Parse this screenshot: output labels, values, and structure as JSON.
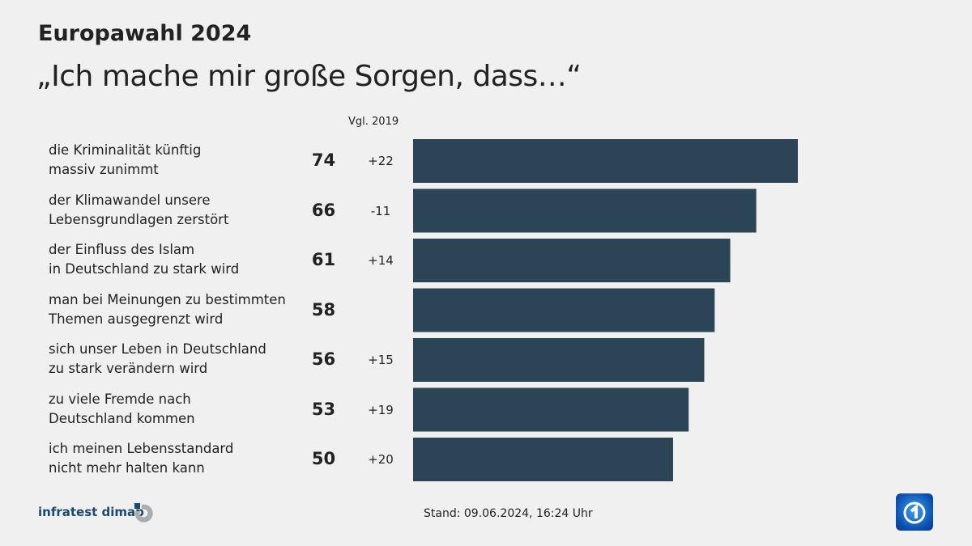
{
  "header": {
    "kicker": "Europawahl 2024",
    "title": "„Ich mache mir große Sorgen, dass…“"
  },
  "comparison_header": "Vgl. 2019",
  "chart_data": {
    "type": "bar",
    "orientation": "horizontal",
    "title": "„Ich mache mir große Sorgen, dass…“",
    "categories": [
      "die Kriminalität künftig\nmassiv zunimmt",
      "der Klimawandel unsere\nLebensgrundlagen zerstört",
      "der Einfluss des Islam\nin Deutschland zu stark wird",
      "man bei Meinungen zu bestimmten\nThemen ausgegrenzt wird",
      "sich unser Leben in Deutschland\nzu stark verändern wird",
      "zu viele Fremde nach\nDeutschland kommen",
      "ich meinen Lebensstandard\nnicht mehr halten kann"
    ],
    "values": [
      74,
      66,
      61,
      58,
      56,
      53,
      50
    ],
    "value_labels": [
      "74",
      "66",
      "61",
      "58",
      "56",
      "53",
      "50"
    ],
    "change_vs_2019": [
      "+22",
      "-11",
      "+14",
      "",
      "+15",
      "+19",
      "+20"
    ],
    "xlim": [
      0,
      100
    ],
    "bar_color": "#2c4556"
  },
  "footer": {
    "source": "infratest dimap",
    "stand": "Stand:  09.06.2024, 16:24 Uhr"
  },
  "logos": {
    "broadcaster": "tagesschau logo"
  }
}
